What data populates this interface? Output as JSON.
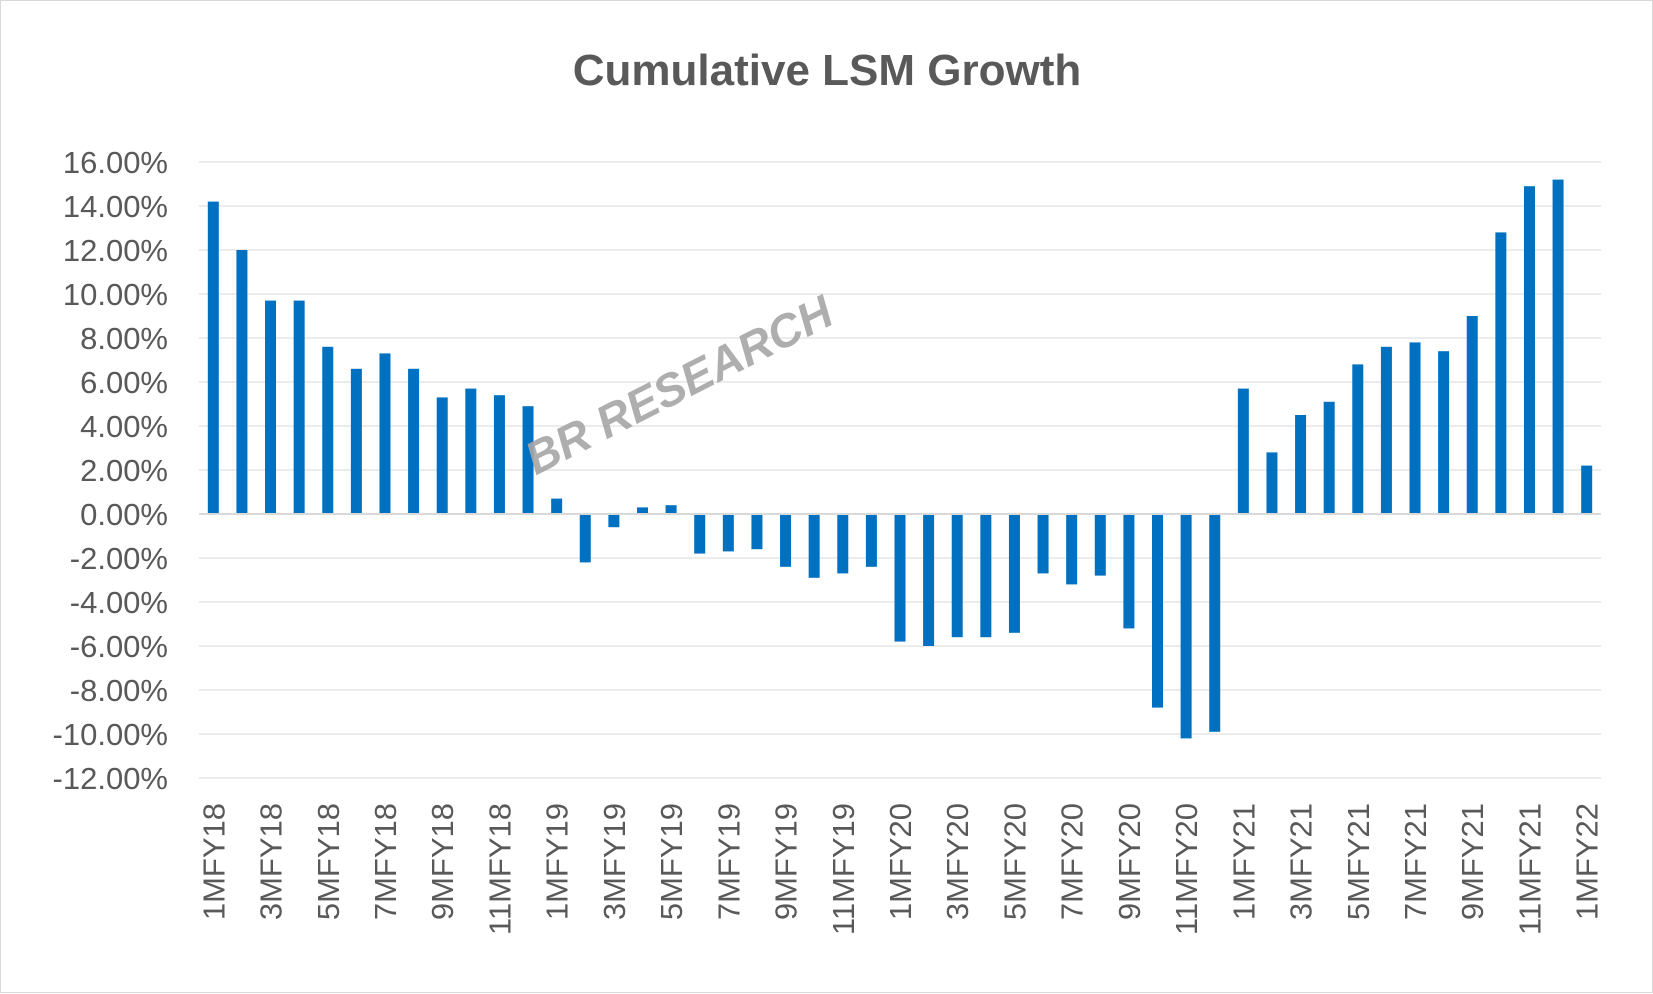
{
  "chart_data": {
    "type": "bar",
    "title": "Cumulative LSM Growth",
    "xlabel": "",
    "ylabel": "",
    "watermark": "BR RESEARCH",
    "ylim": [
      -0.12,
      0.16
    ],
    "y_ticks": [
      0.16,
      0.14,
      0.12,
      0.1,
      0.08,
      0.06,
      0.04,
      0.02,
      0.0,
      -0.02,
      -0.04,
      -0.06,
      -0.08,
      -0.1,
      -0.12
    ],
    "y_tick_labels": [
      "16.00%",
      "14.00%",
      "12.00%",
      "10.00%",
      "8.00%",
      "6.00%",
      "4.00%",
      "2.00%",
      "0.00%",
      "-2.00%",
      "-4.00%",
      "-6.00%",
      "-8.00%",
      "-10.00%",
      "-12.00%"
    ],
    "grid": true,
    "bar_color": "#0070c0",
    "categories": [
      "1MFY18",
      "2MFY18",
      "3MFY18",
      "4MFY18",
      "5MFY18",
      "6MFY18",
      "7MFY18",
      "8MFY18",
      "9MFY18",
      "10MFY18",
      "11MFY18",
      "12MFY18",
      "1MFY19",
      "2MFY19",
      "3MFY19",
      "4MFY19",
      "5MFY19",
      "6MFY19",
      "7MFY19",
      "8MFY19",
      "9MFY19",
      "10MFY19",
      "11MFY19",
      "12MFY19",
      "1MFY20",
      "2MFY20",
      "3MFY20",
      "4MFY20",
      "5MFY20",
      "6MFY20",
      "7MFY20",
      "8MFY20",
      "9MFY20",
      "10MFY20",
      "11MFY20",
      "12MFY20",
      "1MFY21",
      "2MFY21",
      "3MFY21",
      "4MFY21",
      "5MFY21",
      "6MFY21",
      "7MFY21",
      "8MFY21",
      "9MFY21",
      "10MFY21",
      "11MFY21",
      "12MFY21",
      "1MFY22"
    ],
    "visible_x_labels": [
      "1MFY18",
      "3MFY18",
      "5MFY18",
      "7MFY18",
      "9MFY18",
      "11MFY18",
      "1MFY19",
      "3MFY19",
      "5MFY19",
      "7MFY19",
      "9MFY19",
      "11MFY19",
      "1MFY20",
      "3MFY20",
      "5MFY20",
      "7MFY20",
      "9MFY20",
      "11MFY20",
      "1MFY21",
      "3MFY21",
      "5MFY21",
      "7MFY21",
      "9MFY21",
      "11MFY21",
      "1MFY22"
    ],
    "values": [
      0.142,
      0.12,
      0.097,
      0.097,
      0.076,
      0.066,
      0.073,
      0.066,
      0.053,
      0.057,
      0.054,
      0.049,
      0.007,
      -0.022,
      -0.006,
      0.003,
      0.004,
      -0.018,
      -0.017,
      -0.016,
      -0.024,
      -0.029,
      -0.027,
      -0.024,
      -0.058,
      -0.06,
      -0.056,
      -0.056,
      -0.054,
      -0.027,
      -0.032,
      -0.028,
      -0.052,
      -0.088,
      -0.102,
      -0.099,
      0.057,
      0.028,
      0.045,
      0.051,
      0.068,
      0.076,
      0.078,
      0.074,
      0.09,
      0.128,
      0.149,
      0.152,
      0.022
    ]
  }
}
